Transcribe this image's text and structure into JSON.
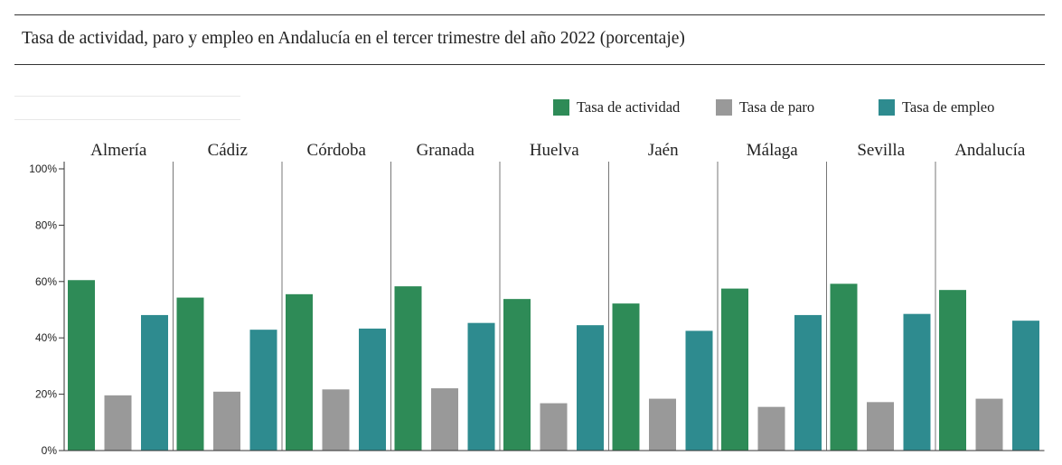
{
  "title": "Tasa de actividad, paro y empleo en Andalucía en el tercer trimestre del año 2022 (porcentaje)",
  "legend": [
    {
      "label": "Tasa de actividad",
      "color": "#2e8b57"
    },
    {
      "label": "Tasa de paro",
      "color": "#999999"
    },
    {
      "label": "Tasa de empleo",
      "color": "#2e8b8f"
    }
  ],
  "chart_data": {
    "type": "bar",
    "categories": [
      "Almería",
      "Cádiz",
      "Córdoba",
      "Granada",
      "Huelva",
      "Jaén",
      "Málaga",
      "Sevilla",
      "Andalucía"
    ],
    "series": [
      {
        "name": "Tasa de actividad",
        "color": "#2e8b57",
        "values": [
          60.5,
          54.3,
          55.5,
          58.3,
          53.8,
          52.2,
          57.5,
          59.2,
          57.0
        ]
      },
      {
        "name": "Tasa de paro",
        "color": "#999999",
        "values": [
          19.6,
          20.9,
          21.7,
          22.1,
          16.8,
          18.4,
          15.5,
          17.2,
          18.4
        ]
      },
      {
        "name": "Tasa de empleo",
        "color": "#2e8b8f",
        "values": [
          48.1,
          42.9,
          43.3,
          45.3,
          44.5,
          42.5,
          48.1,
          48.5,
          46.1
        ]
      }
    ],
    "yticks": [
      "0%",
      "20%",
      "40%",
      "60%",
      "80%",
      "100%"
    ],
    "ylim": [
      0,
      100
    ],
    "legend_position": "top-right",
    "grid": false
  }
}
